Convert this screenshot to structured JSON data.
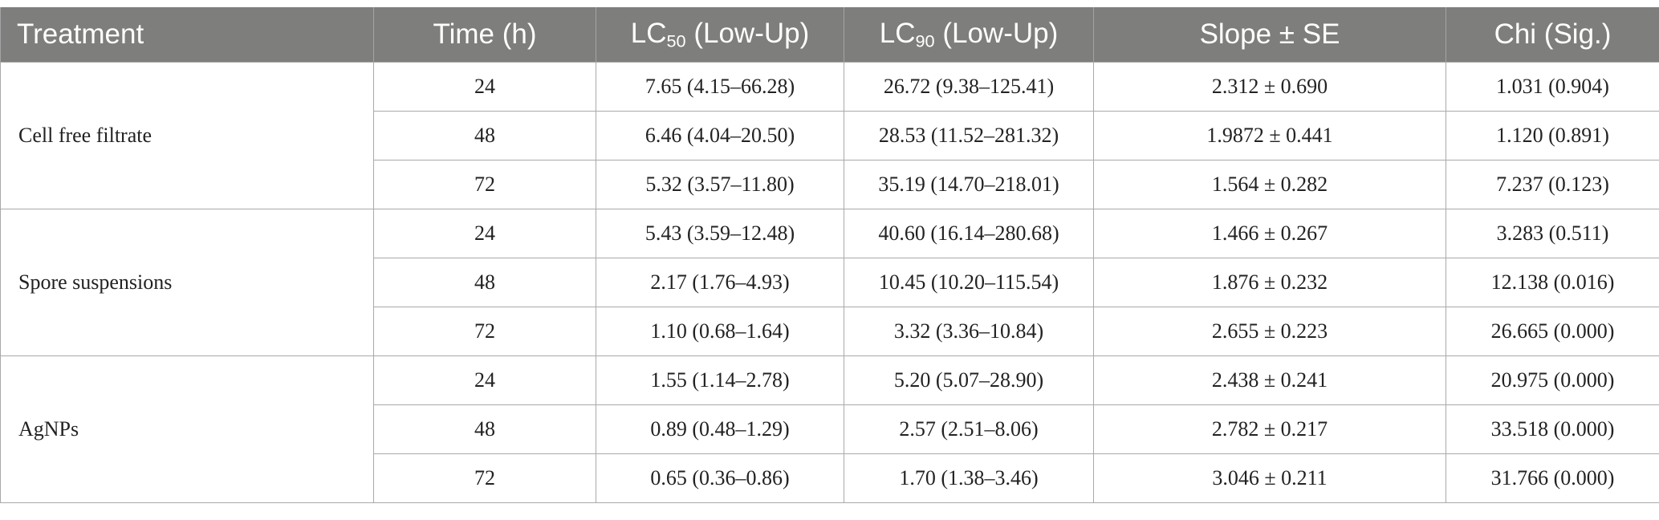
{
  "table": {
    "headers": {
      "treatment": "Treatment",
      "time": "Time (h)",
      "lc50_main": "LC",
      "lc50_sub": "50",
      "lc50_rest": " (Low-Up)",
      "lc90_main": "LC",
      "lc90_sub": "90",
      "lc90_rest": " (Low-Up)",
      "slope": "Slope ± SE",
      "chi": "Chi (Sig.)"
    },
    "groups": [
      {
        "treatment": "Cell free filtrate",
        "rows": [
          {
            "time": "24",
            "lc50": "7.65 (4.15–66.28)",
            "lc90": "26.72 (9.38–125.41)",
            "slope": "2.312 ± 0.690",
            "chi": "1.031 (0.904)"
          },
          {
            "time": "48",
            "lc50": "6.46 (4.04–20.50)",
            "lc90": "28.53 (11.52–281.32)",
            "slope": "1.9872 ± 0.441",
            "chi": "1.120 (0.891)"
          },
          {
            "time": "72",
            "lc50": "5.32 (3.57–11.80)",
            "lc90": "35.19 (14.70–218.01)",
            "slope": "1.564 ± 0.282",
            "chi": "7.237 (0.123)"
          }
        ]
      },
      {
        "treatment": "Spore suspensions",
        "rows": [
          {
            "time": "24",
            "lc50": "5.43 (3.59–12.48)",
            "lc90": "40.60 (16.14–280.68)",
            "slope": "1.466 ± 0.267",
            "chi": "3.283 (0.511)"
          },
          {
            "time": "48",
            "lc50": "2.17 (1.76–4.93)",
            "lc90": "10.45 (10.20–115.54)",
            "slope": "1.876 ± 0.232",
            "chi": "12.138 (0.016)"
          },
          {
            "time": "72",
            "lc50": "1.10 (0.68–1.64)",
            "lc90": "3.32 (3.36–10.84)",
            "slope": "2.655 ± 0.223",
            "chi": "26.665 (0.000)"
          }
        ]
      },
      {
        "treatment": "AgNPs",
        "rows": [
          {
            "time": "24",
            "lc50": "1.55 (1.14–2.78)",
            "lc90": "5.20 (5.07–28.90)",
            "slope": "2.438 ± 0.241",
            "chi": "20.975 (0.000)"
          },
          {
            "time": "48",
            "lc50": "0.89 (0.48–1.29)",
            "lc90": "2.57 (2.51–8.06)",
            "slope": "2.782 ± 0.217",
            "chi": "33.518 (0.000)"
          },
          {
            "time": "72",
            "lc50": "0.65 (0.36–0.86)",
            "lc90": "1.70 (1.38–3.46)",
            "slope": "3.046 ± 0.211",
            "chi": "31.766 (0.000)"
          }
        ]
      }
    ]
  }
}
